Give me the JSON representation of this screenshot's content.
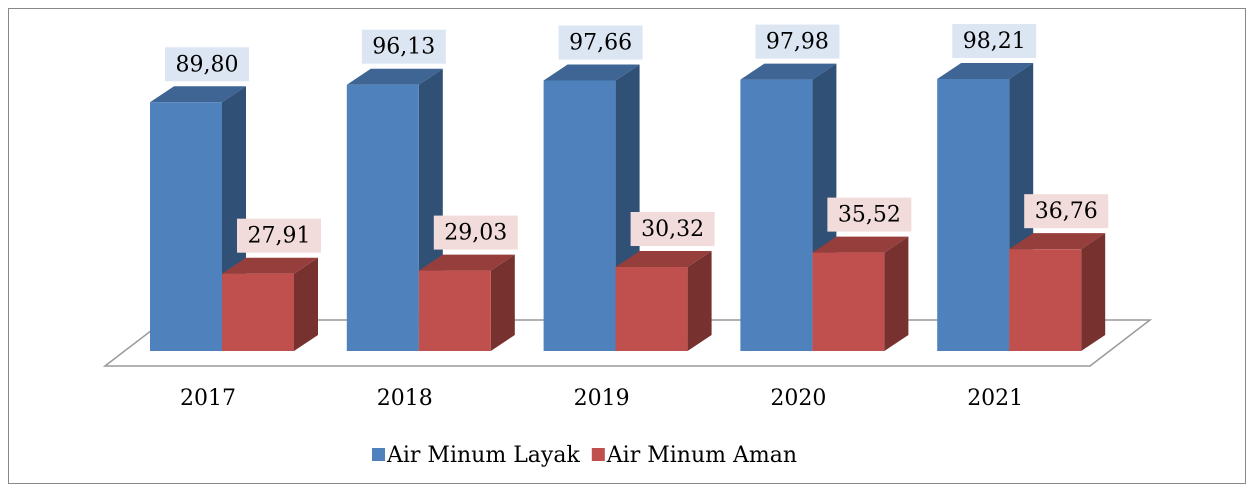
{
  "chart_data": {
    "type": "bar3d",
    "categories": [
      "2017",
      "2018",
      "2019",
      "2020",
      "2021"
    ],
    "series": [
      {
        "name": "Air Minum Layak",
        "color": "#4f81bd",
        "values": [
          89.8,
          96.13,
          97.66,
          97.98,
          98.21
        ],
        "value_labels": [
          "89,80",
          "96,13",
          "97,66",
          "97,98",
          "98,21"
        ]
      },
      {
        "name": "Air Minum Aman",
        "color": "#c0504d",
        "values": [
          27.91,
          29.03,
          30.32,
          35.52,
          36.76
        ],
        "value_labels": [
          "27,91",
          "29,03",
          "30,32",
          "35,52",
          "36,76"
        ]
      }
    ],
    "legend": "bottom"
  }
}
